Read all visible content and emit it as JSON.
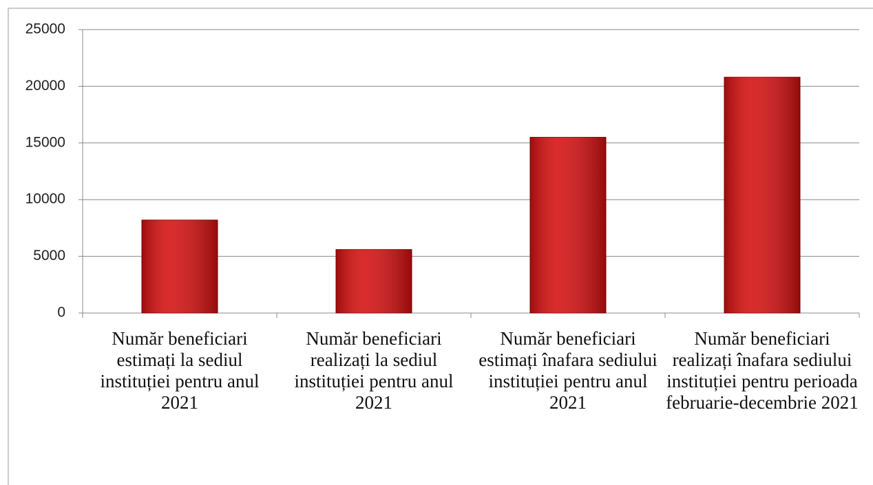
{
  "chart_data": {
    "type": "bar",
    "categories": [
      "Număr beneficiari estimați la sediul instituției pentru anul 2021",
      "Număr beneficiari realizați la sediul instituției pentru anul 2021",
      "Număr beneficiari estimați înafara sediului instituției pentru anul 2021",
      "Număr beneficiari realizați înafara sediului instituției pentru perioada februarie-decembrie 2021"
    ],
    "values": [
      8200,
      5600,
      15500,
      20800
    ],
    "color": "#d40f0f",
    "ylim": [
      0,
      25000
    ],
    "yticks": [
      0,
      5000,
      10000,
      15000,
      20000,
      25000
    ],
    "grid": true
  }
}
